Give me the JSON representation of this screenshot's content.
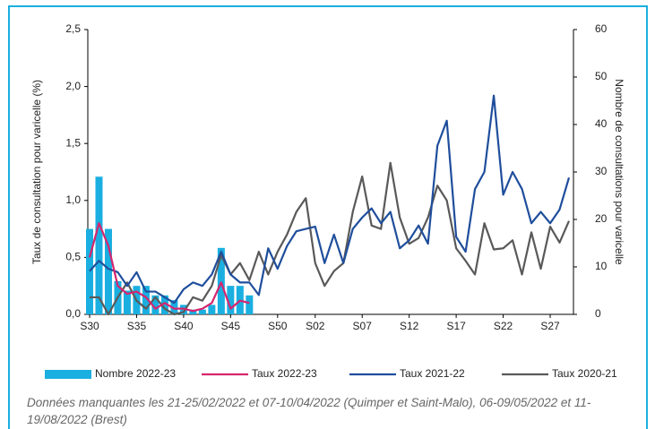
{
  "chart_data": {
    "type": "combo",
    "y_label": "Taux de consultation pour varicelle (%)",
    "y2_label": "Nombre de consultations pour varicelle",
    "categories": [
      "S30",
      null,
      null,
      null,
      null,
      "S35",
      null,
      null,
      null,
      null,
      "S40",
      null,
      null,
      null,
      null,
      "S45",
      null,
      null,
      null,
      null,
      "S50",
      null,
      null,
      null,
      "S02",
      null,
      null,
      null,
      null,
      "S07",
      null,
      null,
      null,
      null,
      "S12",
      null,
      null,
      null,
      null,
      "S17",
      null,
      null,
      null,
      null,
      "S22",
      null,
      null,
      null,
      null,
      "S27",
      null,
      null
    ],
    "ylim": [
      0,
      2.5
    ],
    "yticks": [
      {
        "value": 0,
        "label": "0,0"
      },
      {
        "value": 0.5,
        "label": "0,5"
      },
      {
        "value": 1,
        "label": "1,0"
      },
      {
        "value": 1.5,
        "label": "1,5"
      },
      {
        "value": 2,
        "label": "2,0"
      },
      {
        "value": 2.5,
        "label": "2,5"
      }
    ],
    "y2lim": [
      0,
      60
    ],
    "y2ticks": [
      0,
      10,
      20,
      30,
      40,
      50,
      60
    ],
    "series": [
      {
        "name": "Nombre 2022-23",
        "type": "bar",
        "axis": "y2",
        "color": "#1aafe0",
        "values": [
          18,
          29,
          18,
          7,
          5,
          6,
          6,
          4,
          4,
          3,
          2,
          1,
          1,
          2,
          14,
          6,
          6,
          4,
          null,
          null,
          null,
          null,
          null,
          null,
          null,
          null,
          null,
          null,
          null,
          null,
          null,
          null,
          null,
          null,
          null,
          null,
          null,
          null,
          null,
          null,
          null,
          null,
          null,
          null,
          null,
          null,
          null,
          null,
          null,
          null,
          null,
          null
        ]
      },
      {
        "name": "Taux 2022-23",
        "type": "line",
        "color": "#d6246e",
        "values": [
          0.5,
          0.8,
          0.6,
          0.25,
          0.18,
          0.2,
          0.15,
          0.05,
          0.1,
          0.05,
          0.05,
          0.03,
          0.05,
          0.1,
          0.28,
          0.05,
          0.12,
          0.1,
          null,
          null,
          null,
          null,
          null,
          null,
          null,
          null,
          null,
          null,
          null,
          null,
          null,
          null,
          null,
          null,
          null,
          null,
          null,
          null,
          null,
          null,
          null,
          null,
          null,
          null,
          null,
          null,
          null,
          null,
          null,
          null,
          null,
          null
        ]
      },
      {
        "name": "Taux 2021-22",
        "type": "line",
        "color": "#1f4e9c",
        "values": [
          0.38,
          0.47,
          0.4,
          0.37,
          0.25,
          0.37,
          0.2,
          0.2,
          0.15,
          0.1,
          0.22,
          0.28,
          0.25,
          0.35,
          0.55,
          0.35,
          0.28,
          0.28,
          0.17,
          0.58,
          0.4,
          0.6,
          0.73,
          0.75,
          0.77,
          0.45,
          0.7,
          0.45,
          0.75,
          0.85,
          0.93,
          0.8,
          0.9,
          0.58,
          0.65,
          0.78,
          0.62,
          1.48,
          1.7,
          0.68,
          0.55,
          1.1,
          1.25,
          1.92,
          1.05,
          1.25,
          1.1,
          0.8,
          0.9,
          0.8,
          0.92,
          1.2
        ]
      },
      {
        "name": "Taux 2020-21",
        "type": "line",
        "color": "#595959",
        "values": [
          0.15,
          0.15,
          0.0,
          0.15,
          0.28,
          0.12,
          0.05,
          0.15,
          0.05,
          0.0,
          0.02,
          0.15,
          0.12,
          0.25,
          0.52,
          0.35,
          0.45,
          0.3,
          0.55,
          0.35,
          0.55,
          0.7,
          0.9,
          1.02,
          0.45,
          0.25,
          0.38,
          0.45,
          0.9,
          1.21,
          0.78,
          0.75,
          1.33,
          0.85,
          0.62,
          0.67,
          0.85,
          1.13,
          1.0,
          0.58,
          0.47,
          0.35,
          0.8,
          0.57,
          0.58,
          0.65,
          0.35,
          0.72,
          0.4,
          0.77,
          0.63,
          0.82
        ]
      }
    ],
    "note": "Données manquantes les 21-25/02/2022 et 07-10/04/2022 (Quimper et Saint-Malo), 06-09/05/2022 et 11-19/08/2022 (Brest)"
  }
}
